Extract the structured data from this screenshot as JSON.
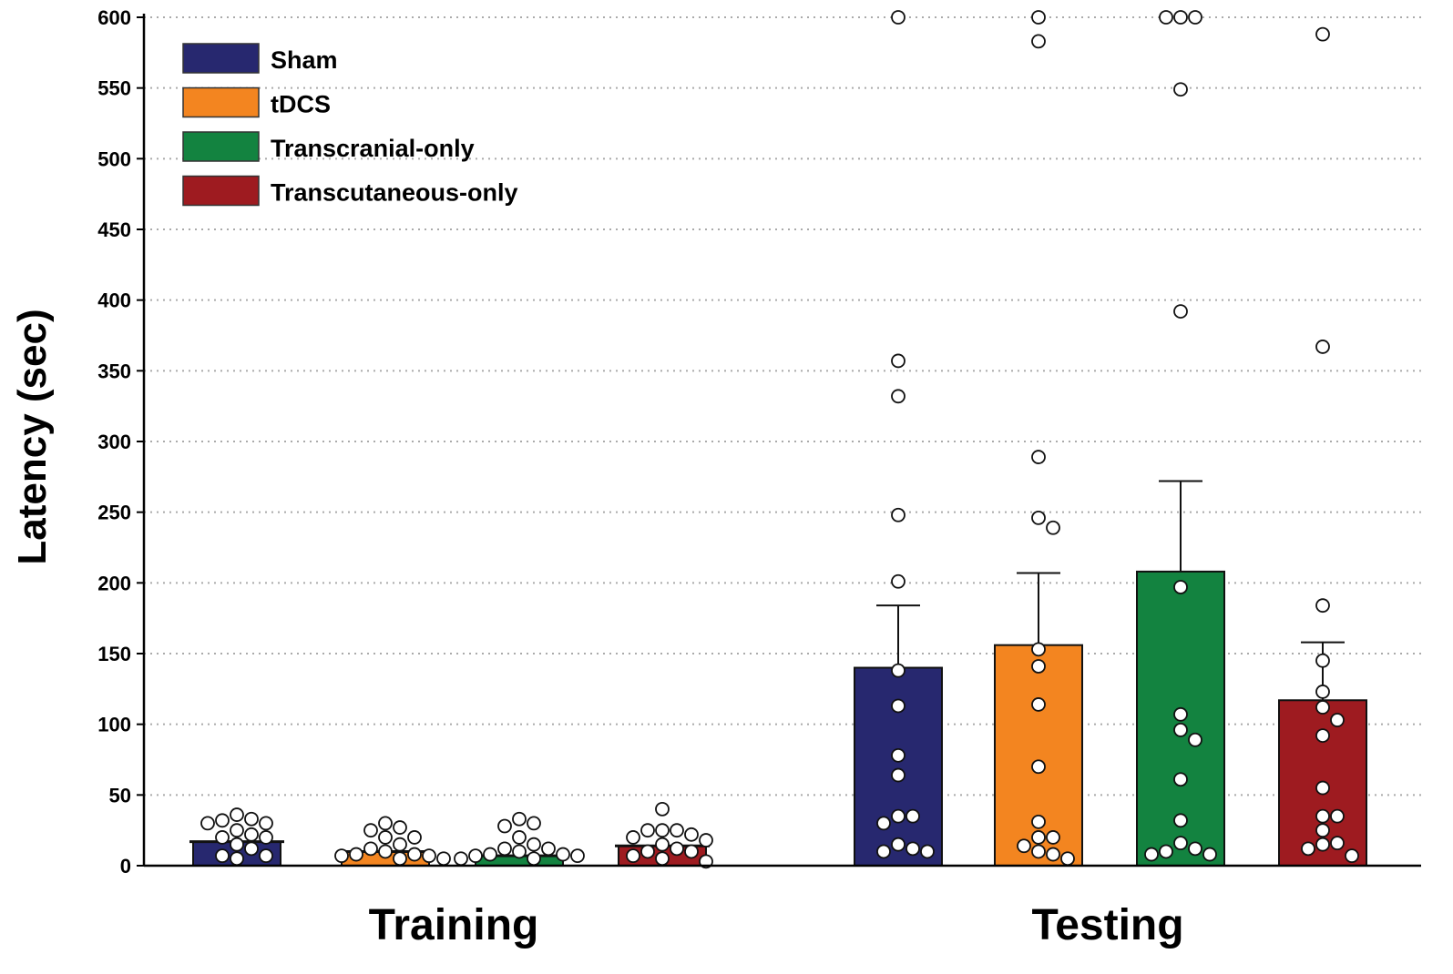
{
  "chart_data": {
    "type": "bar",
    "title": "",
    "xlabel": "",
    "ylabel": "Latency  (sec)",
    "ylim": [
      0,
      600
    ],
    "yticks": [
      0,
      50,
      100,
      150,
      200,
      250,
      300,
      350,
      400,
      450,
      500,
      550,
      600
    ],
    "grid": true,
    "legend_position": "top-left",
    "categories": [
      "Training",
      "Testing"
    ],
    "series": [
      {
        "name": "Sham",
        "color": "#27286f",
        "values": [
          17,
          140
        ],
        "error_upper": [
          17,
          184
        ],
        "points": [
          [
            36,
            33,
            32,
            30,
            30,
            25,
            22,
            20,
            20,
            15,
            12,
            7,
            7,
            5
          ],
          [
            600,
            357,
            332,
            248,
            201,
            138,
            113,
            78,
            64,
            35,
            35,
            30,
            15,
            12,
            10,
            10
          ]
        ]
      },
      {
        "name": "tDCS",
        "color": "#f38520",
        "values": [
          10,
          156
        ],
        "error_upper": [
          10,
          207
        ],
        "points": [
          [
            30,
            27,
            25,
            20,
            20,
            15,
            12,
            10,
            8,
            8,
            7,
            7,
            5,
            5
          ],
          [
            600,
            583,
            289,
            246,
            239,
            153,
            141,
            114,
            70,
            31,
            20,
            20,
            14,
            10,
            8,
            5
          ]
        ]
      },
      {
        "name": "Transcranial-only",
        "color": "#138340",
        "values": [
          7,
          208
        ],
        "error_upper": [
          7,
          272
        ],
        "points": [
          [
            33,
            30,
            28,
            20,
            15,
            12,
            12,
            10,
            8,
            8,
            7,
            7,
            5,
            5
          ],
          [
            600,
            600,
            600,
            549,
            392,
            197,
            107,
            96,
            89,
            61,
            32,
            16,
            12,
            10,
            8,
            8
          ]
        ]
      },
      {
        "name": "Transcutaneous-only",
        "color": "#9e1b20",
        "values": [
          14,
          117
        ],
        "error_upper": [
          14,
          158
        ],
        "points": [
          [
            40,
            25,
            25,
            25,
            22,
            20,
            18,
            15,
            12,
            10,
            10,
            7,
            5,
            3
          ],
          [
            588,
            367,
            184,
            145,
            123,
            112,
            103,
            92,
            55,
            35,
            35,
            25,
            16,
            15,
            12,
            7
          ]
        ]
      }
    ]
  }
}
